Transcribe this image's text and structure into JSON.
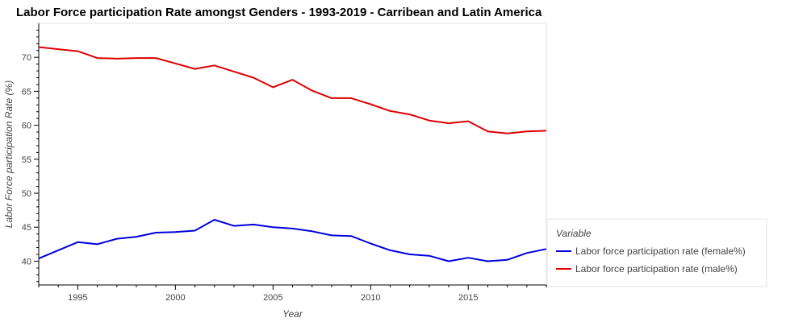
{
  "chart_data": {
    "type": "line",
    "title": "Labor Force participation Rate amongst Genders - 1993-2019 - Carribean and Latin America",
    "xlabel": "Year",
    "ylabel": "Labor Force participation Rate (%)",
    "xlim": [
      1993,
      2019
    ],
    "ylim": [
      36.5,
      75
    ],
    "xticks": [
      1995,
      2000,
      2005,
      2010,
      2015
    ],
    "yticks": [
      40,
      45,
      50,
      55,
      60,
      65,
      70
    ],
    "grid": false,
    "legend_title": "Variable",
    "legend_position": "right",
    "x": [
      1993,
      1994,
      1995,
      1996,
      1997,
      1998,
      1999,
      2000,
      2001,
      2002,
      2003,
      2004,
      2005,
      2006,
      2007,
      2008,
      2009,
      2010,
      2011,
      2012,
      2013,
      2014,
      2015,
      2016,
      2017,
      2018,
      2019
    ],
    "series": [
      {
        "name": "Labor force participation rate (female%)",
        "color": "#0000dd",
        "values": [
          40.4,
          41.6,
          42.8,
          42.5,
          43.3,
          43.6,
          44.2,
          44.3,
          44.5,
          46.1,
          45.2,
          45.4,
          45.0,
          44.8,
          44.4,
          43.8,
          43.7,
          42.6,
          41.6,
          41.0,
          40.8,
          40.0,
          40.5,
          40.0,
          40.2,
          41.2,
          41.8
        ]
      },
      {
        "name": "Labor force participation rate (male%)",
        "color": "#dd0000",
        "values": [
          71.5,
          71.2,
          70.9,
          69.9,
          69.8,
          69.9,
          69.9,
          69.1,
          68.3,
          68.8,
          67.9,
          67.0,
          65.6,
          66.7,
          65.1,
          64.0,
          64.0,
          63.1,
          62.1,
          61.6,
          60.7,
          60.3,
          60.6,
          59.1,
          58.8,
          59.1,
          59.2
        ]
      }
    ]
  }
}
